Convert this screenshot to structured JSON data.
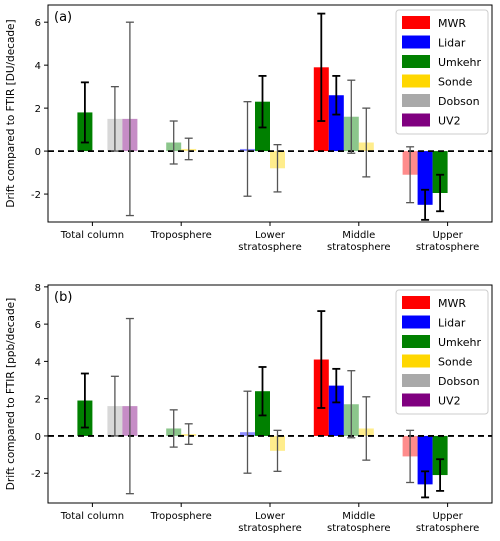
{
  "colors": {
    "MWR": "#ff0000",
    "Lidar": "#0000ff",
    "Umkehr": "#008000",
    "Sonde": "#ffd700",
    "Dobson": "#a9a9a9",
    "UV2": "#800080"
  },
  "chart_data": [
    {
      "type": "bar",
      "panel_label": "(a)",
      "ylabel": "Drift compared to FTIR [DU/decade]",
      "ylim": [
        -3.3,
        6.8
      ],
      "yticks": [
        -2,
        0,
        2,
        4,
        6
      ],
      "zero_line": "dashed",
      "legend_position": "top-right",
      "categories": [
        "Total column",
        "Troposphere",
        "Lower\nstratosphere",
        "Middle\nstratosphere",
        "Upper\nstratosphere"
      ],
      "series": [
        {
          "name": "MWR",
          "values": [
            null,
            null,
            null,
            3.9,
            -1.1
          ],
          "err": [
            null,
            null,
            null,
            2.5,
            1.3
          ],
          "alpha": [
            1,
            1,
            1,
            1,
            0.45
          ]
        },
        {
          "name": "Lidar",
          "values": [
            null,
            null,
            0.1,
            2.6,
            -2.5
          ],
          "err": [
            null,
            null,
            2.2,
            0.9,
            0.7
          ],
          "alpha": [
            1,
            1,
            0.45,
            1,
            1
          ]
        },
        {
          "name": "Umkehr",
          "values": [
            1.8,
            0.4,
            2.3,
            1.6,
            -1.95
          ],
          "err": [
            1.4,
            1.0,
            1.2,
            1.7,
            0.85
          ],
          "alpha": [
            1,
            0.45,
            1,
            0.45,
            1
          ]
        },
        {
          "name": "Sonde",
          "values": [
            null,
            0.1,
            -0.8,
            0.4,
            null
          ],
          "err": [
            null,
            0.5,
            1.1,
            1.6,
            null
          ],
          "alpha": [
            1,
            0.45,
            0.45,
            0.45,
            1
          ]
        },
        {
          "name": "Dobson",
          "values": [
            1.5,
            null,
            null,
            null,
            null
          ],
          "err": [
            1.5,
            null,
            null,
            null,
            null
          ],
          "alpha": [
            0.45,
            1,
            1,
            1,
            1
          ]
        },
        {
          "name": "UV2",
          "values": [
            1.5,
            null,
            null,
            null,
            null
          ],
          "err": [
            4.5,
            null,
            null,
            null,
            null
          ],
          "alpha": [
            0.45,
            1,
            1,
            1,
            1
          ]
        }
      ]
    },
    {
      "type": "bar",
      "panel_label": "(b)",
      "ylabel": "Drift compared to FTIR [ppb/decade]",
      "ylim": [
        -3.6,
        8.1
      ],
      "yticks": [
        -2,
        0,
        2,
        4,
        6,
        8
      ],
      "zero_line": "dashed",
      "legend_position": "top-right",
      "categories": [
        "Total column",
        "Troposphere",
        "Lower\nstratosphere",
        "Middle\nstratosphere",
        "Upper\nstratosphere"
      ],
      "series": [
        {
          "name": "MWR",
          "values": [
            null,
            null,
            null,
            4.1,
            -1.1
          ],
          "err": [
            null,
            null,
            null,
            2.6,
            1.4
          ],
          "alpha": [
            1,
            1,
            1,
            1,
            0.45
          ]
        },
        {
          "name": "Lidar",
          "values": [
            null,
            null,
            0.2,
            2.7,
            -2.6
          ],
          "err": [
            null,
            null,
            2.2,
            0.9,
            0.7
          ],
          "alpha": [
            1,
            1,
            0.45,
            1,
            1
          ]
        },
        {
          "name": "Umkehr",
          "values": [
            1.9,
            0.4,
            2.4,
            1.7,
            -2.1
          ],
          "err": [
            1.45,
            1.0,
            1.3,
            1.8,
            0.85
          ],
          "alpha": [
            1,
            0.45,
            1,
            0.45,
            1
          ]
        },
        {
          "name": "Sonde",
          "values": [
            null,
            0.1,
            -0.8,
            0.4,
            null
          ],
          "err": [
            null,
            0.55,
            1.1,
            1.7,
            null
          ],
          "alpha": [
            1,
            0.45,
            0.45,
            0.45,
            1
          ]
        },
        {
          "name": "Dobson",
          "values": [
            1.6,
            null,
            null,
            null,
            null
          ],
          "err": [
            1.6,
            null,
            null,
            null,
            null
          ],
          "alpha": [
            0.45,
            1,
            1,
            1,
            1
          ]
        },
        {
          "name": "UV2",
          "values": [
            1.6,
            null,
            null,
            null,
            null
          ],
          "err": [
            4.7,
            null,
            null,
            null,
            null
          ],
          "alpha": [
            0.45,
            1,
            1,
            1,
            1
          ]
        }
      ]
    }
  ]
}
